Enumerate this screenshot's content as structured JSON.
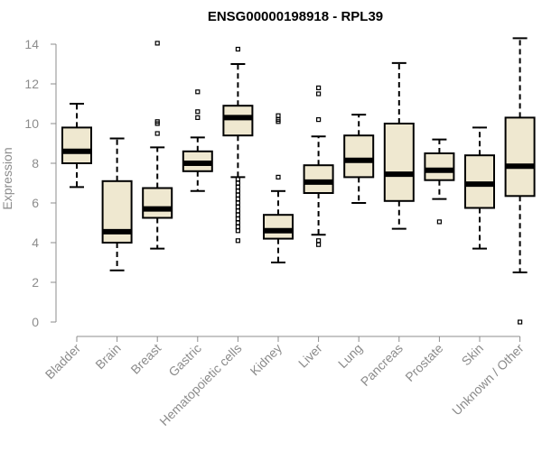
{
  "chart_data": {
    "type": "boxplot",
    "title": "ENSG00000198918 - RPL39",
    "xlabel": "",
    "ylabel": "Expression",
    "ylim": [
      0,
      14
    ],
    "yticks": [
      0,
      2,
      4,
      6,
      8,
      10,
      12,
      14
    ],
    "grid": false,
    "colors": {
      "box_fill": "#efe8d0",
      "stroke": "#000000",
      "axis": "#8c8c8c"
    },
    "categories": [
      "Bladder",
      "Brain",
      "Breast",
      "Gastric",
      "Hematopoietic cells",
      "Kidney",
      "Liver",
      "Lung",
      "Pancreas",
      "Prostate",
      "Skin",
      "Unknown / Other"
    ],
    "boxes": [
      {
        "category": "Bladder",
        "whisker_low": 6.8,
        "q1": 8.0,
        "median": 8.6,
        "q3": 9.8,
        "whisker_high": 11.0,
        "outliers": []
      },
      {
        "category": "Brain",
        "whisker_low": 2.6,
        "q1": 4.0,
        "median": 4.55,
        "q3": 7.1,
        "whisker_high": 9.25,
        "outliers": []
      },
      {
        "category": "Breast",
        "whisker_low": 3.7,
        "q1": 5.25,
        "median": 5.7,
        "q3": 6.75,
        "whisker_high": 8.8,
        "outliers": [
          9.5,
          10.0,
          10.1,
          14.05
        ]
      },
      {
        "category": "Gastric",
        "whisker_low": 6.6,
        "q1": 7.6,
        "median": 8.0,
        "q3": 8.6,
        "whisker_high": 9.3,
        "outliers": [
          10.3,
          10.6,
          11.6
        ]
      },
      {
        "category": "Hematopoietic cells",
        "whisker_low": 7.3,
        "q1": 9.4,
        "median": 10.3,
        "q3": 10.9,
        "whisker_high": 13.0,
        "outliers": [
          4.1,
          4.6,
          4.8,
          5.0,
          5.2,
          5.4,
          5.6,
          5.8,
          6.0,
          6.2,
          6.4,
          6.6,
          6.8,
          7.0,
          7.2,
          13.75
        ]
      },
      {
        "category": "Kidney",
        "whisker_low": 3.0,
        "q1": 4.2,
        "median": 4.6,
        "q3": 5.4,
        "whisker_high": 6.6,
        "outliers": [
          7.3,
          10.1,
          10.2,
          10.4
        ]
      },
      {
        "category": "Liver",
        "whisker_low": 4.4,
        "q1": 6.5,
        "median": 7.05,
        "q3": 7.9,
        "whisker_high": 9.35,
        "outliers": [
          3.9,
          4.1,
          10.2,
          11.5,
          11.8
        ]
      },
      {
        "category": "Lung",
        "whisker_low": 6.0,
        "q1": 7.3,
        "median": 8.15,
        "q3": 9.4,
        "whisker_high": 10.45,
        "outliers": []
      },
      {
        "category": "Pancreas",
        "whisker_low": 4.7,
        "q1": 6.1,
        "median": 7.45,
        "q3": 10.0,
        "whisker_high": 13.05,
        "outliers": []
      },
      {
        "category": "Prostate",
        "whisker_low": 6.2,
        "q1": 7.15,
        "median": 7.65,
        "q3": 8.5,
        "whisker_high": 9.2,
        "outliers": [
          5.05
        ]
      },
      {
        "category": "Skin",
        "whisker_low": 3.7,
        "q1": 5.75,
        "median": 6.95,
        "q3": 8.4,
        "whisker_high": 9.8,
        "outliers": []
      },
      {
        "category": "Unknown / Other",
        "whisker_low": 2.5,
        "q1": 6.35,
        "median": 7.85,
        "q3": 10.3,
        "whisker_high": 14.3,
        "outliers": [
          0.0
        ]
      }
    ]
  }
}
